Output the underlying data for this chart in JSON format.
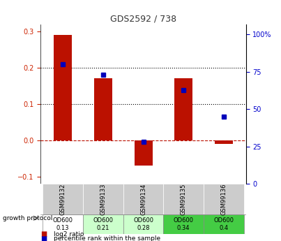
{
  "title": "GDS2592 / 738",
  "samples": [
    "GSM99132",
    "GSM99133",
    "GSM99134",
    "GSM99135",
    "GSM99136"
  ],
  "log2_ratio": [
    0.29,
    0.17,
    -0.07,
    0.17,
    -0.01
  ],
  "percentile_rank": [
    80,
    73,
    28,
    63,
    45
  ],
  "bar_color": "#bb1100",
  "point_color": "#0000bb",
  "ylim_left": [
    -0.12,
    0.32
  ],
  "ylim_right": [
    0,
    107
  ],
  "yticks_left": [
    -0.1,
    0.0,
    0.1,
    0.2,
    0.3
  ],
  "yticks_right": [
    0,
    25,
    50,
    75,
    100
  ],
  "ytick_labels_right": [
    "0",
    "25",
    "50",
    "75",
    "100%"
  ],
  "hlines_dotted": [
    0.1,
    0.2
  ],
  "hline_dashed": 0.0,
  "growth_protocol_values": [
    "OD600\n0.13",
    "OD600\n0.21",
    "OD600\n0.28",
    "OD600\n0.34",
    "OD600\n0.4"
  ],
  "growth_protocol_colors": [
    "#ffffff",
    "#ccffcc",
    "#ccffcc",
    "#44cc44",
    "#44cc44"
  ],
  "legend_log2": "log2 ratio",
  "legend_pct": "percentile rank within the sample",
  "bar_width": 0.45,
  "bg_color": "#ffffff",
  "sample_bg": "#cccccc",
  "axis_color_left": "#cc2200",
  "axis_color_right": "#0000cc",
  "title_color": "#333333"
}
